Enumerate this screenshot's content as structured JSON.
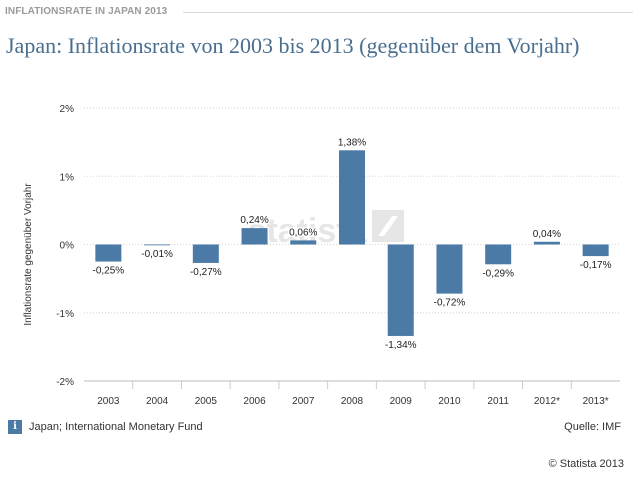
{
  "header": {
    "label": "INFLATIONSRATE IN JAPAN 2013",
    "title": "Japan: Inflationsrate von 2003 bis 2013 (gegenüber dem Vorjahr)"
  },
  "chart_data": {
    "type": "bar",
    "title": "Japan: Inflationsrate von 2003 bis 2013 (gegenüber dem Vorjahr)",
    "xlabel": "",
    "ylabel": "Inflationsrate gegenüber Vorjahr",
    "categories": [
      "2003",
      "2004",
      "2005",
      "2006",
      "2007",
      "2008",
      "2009",
      "2010",
      "2011",
      "2012*",
      "2013*"
    ],
    "values": [
      -0.25,
      -0.01,
      -0.27,
      0.24,
      0.06,
      1.38,
      -1.34,
      -0.72,
      -0.29,
      0.04,
      -0.17
    ],
    "value_labels": [
      "-0,25%",
      "-0,01%",
      "-0,27%",
      "0,24%",
      "0,06%",
      "1,38%",
      "-1,34%",
      "-0,72%",
      "-0,29%",
      "0,04%",
      "-0,17%"
    ],
    "yticks": [
      2,
      1,
      0,
      -1,
      -2
    ],
    "ytick_labels": [
      "2%",
      "1%",
      "0%",
      "-1%",
      "-2%"
    ],
    "ylim": [
      -2,
      2
    ],
    "grid": true,
    "bar_color": "#4a7aa5",
    "watermark": "statista"
  },
  "footer": {
    "info_icon": "info-icon",
    "source_note": "Japan; International Monetary Fund",
    "source": "Quelle: IMF",
    "copyright": "© Statista 2013"
  }
}
